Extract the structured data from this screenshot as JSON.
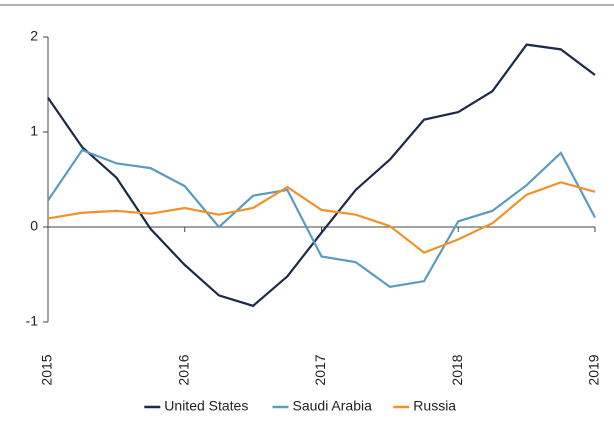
{
  "chart_data": {
    "type": "line",
    "x": [
      2015,
      2015.25,
      2015.5,
      2015.75,
      2016,
      2016.25,
      2016.5,
      2016.75,
      2017,
      2017.25,
      2017.5,
      2017.75,
      2018,
      2018.25,
      2018.5,
      2018.75,
      2019
    ],
    "xlim": [
      2015,
      2019
    ],
    "xticks": [
      2015,
      2016,
      2017,
      2018,
      2019
    ],
    "ylim": [
      -1,
      2
    ],
    "yticks": [
      -1,
      0,
      1,
      2
    ],
    "series": [
      {
        "name": "United States",
        "color": "#1b2a47",
        "values": [
          1.36,
          0.84,
          0.52,
          -0.02,
          -0.4,
          -0.72,
          -0.83,
          -0.52,
          -0.06,
          0.39,
          0.71,
          1.13,
          1.21,
          1.43,
          1.92,
          1.87,
          1.6
        ]
      },
      {
        "name": "Saudi Arabia",
        "color": "#5b9bc1",
        "values": [
          0.28,
          0.81,
          0.67,
          0.62,
          0.43,
          0.0,
          0.33,
          0.39,
          -0.31,
          -0.37,
          -0.63,
          -0.57,
          0.06,
          0.17,
          0.44,
          0.78,
          0.1
        ]
      },
      {
        "name": "Russia",
        "color": "#f0922b",
        "values": [
          0.09,
          0.15,
          0.17,
          0.14,
          0.2,
          0.13,
          0.2,
          0.42,
          0.18,
          0.13,
          0.01,
          -0.27,
          -0.13,
          0.04,
          0.34,
          0.47,
          0.37
        ]
      }
    ]
  }
}
